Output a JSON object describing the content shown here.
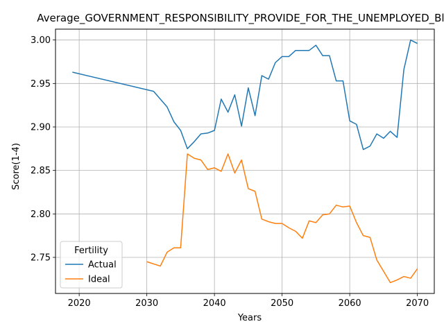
{
  "chart_data": {
    "type": "line",
    "title": "Average_GOVERNMENT_RESPONSIBILITY_PROVIDE_FOR_THE_UNEMPLOYED_Black",
    "xlabel": "Years",
    "ylabel": "Score(1-4)",
    "xlim": [
      2016.5,
      2072.5
    ],
    "ylim": [
      2.7085,
      3.0125
    ],
    "xticks": [
      2020,
      2030,
      2040,
      2050,
      2060,
      2070
    ],
    "yticks": [
      2.75,
      2.8,
      2.85,
      2.9,
      2.95,
      3.0
    ],
    "xtick_labels": [
      "2020",
      "2030",
      "2040",
      "2050",
      "2060",
      "2070"
    ],
    "ytick_labels": [
      "2.75",
      "2.80",
      "2.85",
      "2.90",
      "2.95",
      "3.00"
    ],
    "grid": true,
    "legend": {
      "title": "Fertility",
      "placement": "lower-left"
    },
    "series": [
      {
        "name": "Actual",
        "color": "#1f77b4",
        "x": [
          2019,
          2031,
          2033,
          2034,
          2035,
          2036,
          2037,
          2038,
          2039,
          2040,
          2041,
          2042,
          2043,
          2044,
          2045,
          2046,
          2047,
          2048,
          2049,
          2050,
          2051,
          2052,
          2053,
          2054,
          2055,
          2056,
          2057,
          2058,
          2059,
          2060,
          2061,
          2062,
          2063,
          2064,
          2065,
          2066,
          2067,
          2068,
          2069,
          2070
        ],
        "y": [
          2.963,
          2.941,
          2.923,
          2.906,
          2.896,
          2.875,
          2.883,
          2.892,
          2.893,
          2.896,
          2.932,
          2.917,
          2.937,
          2.901,
          2.945,
          2.913,
          2.959,
          2.955,
          2.974,
          2.981,
          2.981,
          2.988,
          2.988,
          2.988,
          2.994,
          2.982,
          2.982,
          2.953,
          2.953,
          2.907,
          2.903,
          2.874,
          2.878,
          2.892,
          2.887,
          2.895,
          2.888,
          2.966,
          3.0,
          2.996
        ]
      },
      {
        "name": "Ideal",
        "color": "#ff7f0e",
        "x": [
          2030,
          2032,
          2033,
          2034,
          2035,
          2036,
          2037,
          2038,
          2039,
          2040,
          2041,
          2042,
          2043,
          2044,
          2045,
          2046,
          2047,
          2048,
          2049,
          2050,
          2051,
          2052,
          2053,
          2054,
          2055,
          2056,
          2057,
          2058,
          2059,
          2060,
          2061,
          2062,
          2063,
          2064,
          2065,
          2066,
          2067,
          2068,
          2069,
          2070
        ],
        "y": [
          2.745,
          2.74,
          2.756,
          2.761,
          2.761,
          2.869,
          2.864,
          2.862,
          2.851,
          2.853,
          2.849,
          2.869,
          2.847,
          2.862,
          2.829,
          2.826,
          2.794,
          2.791,
          2.789,
          2.789,
          2.784,
          2.78,
          2.772,
          2.792,
          2.79,
          2.799,
          2.8,
          2.81,
          2.808,
          2.809,
          2.79,
          2.775,
          2.773,
          2.747,
          2.734,
          2.721,
          2.724,
          2.728,
          2.726,
          2.737
        ]
      }
    ]
  }
}
